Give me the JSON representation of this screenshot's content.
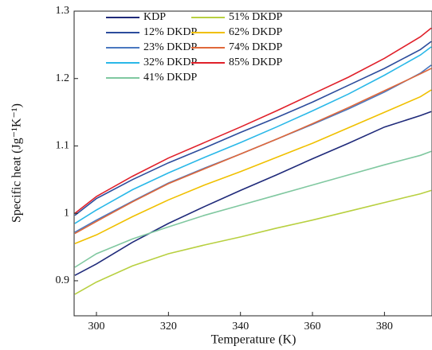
{
  "chart_data": {
    "type": "line",
    "x_label": "Temperature (K)",
    "y_label": "Specific heat (Jg⁻¹K⁻¹)",
    "x": [
      294,
      300,
      310,
      320,
      330,
      340,
      350,
      360,
      370,
      380,
      390,
      393
    ],
    "xlim": [
      293.8,
      393.2
    ],
    "ylim": [
      0.848,
      1.3
    ],
    "xticks": [
      300,
      320,
      340,
      360,
      380
    ],
    "yticks": [
      0.9,
      1.0,
      1.1,
      1.2,
      1.3
    ],
    "series": [
      {
        "name": "KDP",
        "color": "#1f2a7a",
        "values": [
          0.908,
          0.925,
          0.957,
          0.985,
          1.01,
          1.034,
          1.057,
          1.081,
          1.104,
          1.128,
          1.145,
          1.151
        ]
      },
      {
        "name": "12% DKDP",
        "color": "#2c4c9c",
        "values": [
          0.997,
          1.022,
          1.05,
          1.075,
          1.097,
          1.12,
          1.142,
          1.165,
          1.19,
          1.215,
          1.243,
          1.255
        ]
      },
      {
        "name": "23% DKDP",
        "color": "#4a78c0",
        "values": [
          0.972,
          0.99,
          1.018,
          1.045,
          1.067,
          1.088,
          1.11,
          1.132,
          1.155,
          1.18,
          1.208,
          1.22
        ]
      },
      {
        "name": "32% DKDP",
        "color": "#2ab8e8",
        "values": [
          0.985,
          1.005,
          1.035,
          1.06,
          1.083,
          1.105,
          1.128,
          1.152,
          1.177,
          1.205,
          1.235,
          1.247
        ]
      },
      {
        "name": "41% DKDP",
        "color": "#80c8a0",
        "values": [
          0.92,
          0.94,
          0.962,
          0.98,
          0.997,
          1.012,
          1.027,
          1.042,
          1.057,
          1.072,
          1.086,
          1.092
        ]
      },
      {
        "name": "51% DKDP",
        "color": "#b8d040",
        "values": [
          0.88,
          0.898,
          0.922,
          0.94,
          0.953,
          0.965,
          0.978,
          0.99,
          1.003,
          1.016,
          1.029,
          1.034
        ]
      },
      {
        "name": "62% DKDP",
        "color": "#f0c000",
        "values": [
          0.955,
          0.968,
          0.995,
          1.02,
          1.042,
          1.062,
          1.083,
          1.104,
          1.127,
          1.15,
          1.173,
          1.183
        ]
      },
      {
        "name": "74% DKDP",
        "color": "#e0683a",
        "values": [
          0.97,
          0.988,
          1.017,
          1.044,
          1.066,
          1.088,
          1.11,
          1.133,
          1.157,
          1.182,
          1.207,
          1.215
        ]
      },
      {
        "name": "85% DKDP",
        "color": "#e0202a",
        "values": [
          1.0,
          1.025,
          1.055,
          1.082,
          1.105,
          1.128,
          1.152,
          1.177,
          1.202,
          1.23,
          1.262,
          1.275
        ]
      }
    ]
  }
}
